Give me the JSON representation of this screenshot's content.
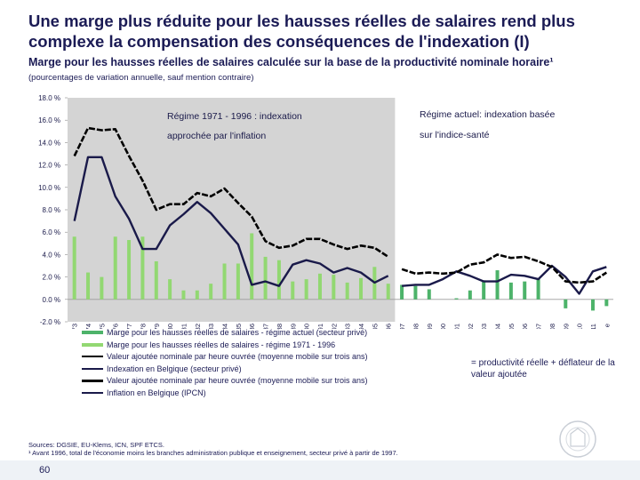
{
  "header": {
    "title": "Une marge plus réduite pour les hausses réelles de salaires rend plus complexe la compensation des conséquences de l'indexation (I)",
    "subtitle": "Marge pour les hausses réelles de salaires calculée sur la base de la productivité nominale horaire¹",
    "units": "(pourcentages de variation annuelle, sauf mention contraire)"
  },
  "chart_data": {
    "type": "bar",
    "ylim": [
      -2,
      18
    ],
    "yticks": [
      "18.0 %",
      "16.0 %",
      "14.0 %",
      "12.0 %",
      "10.0 %",
      "8.0 %",
      "6.0 %",
      "4.0 %",
      "2.0 %",
      "0.0 %",
      "-2.0 %"
    ],
    "categories": [
      "1973",
      "1974",
      "1975",
      "1976",
      "1977",
      "1978",
      "1979",
      "1980",
      "1981",
      "1982",
      "1983",
      "1984",
      "1985",
      "1986",
      "1987",
      "1988",
      "1989",
      "1990",
      "1991",
      "1992",
      "1993",
      "1994",
      "1995",
      "1996",
      "1997",
      "1998",
      "1999",
      "2000",
      "2001",
      "2002",
      "2003",
      "2004",
      "2005",
      "2006",
      "2007",
      "2008",
      "2009",
      "2010",
      "2011",
      "2012 e"
    ],
    "regime_annotations": {
      "old_line1": "Régime 1971 - 1996 : indexation",
      "old_line2": "approchée par l'inflation",
      "new_line1": "Régime actuel: indexation basée",
      "new_line2": "sur l'indice-santé"
    },
    "shaded_region": {
      "from": "1973",
      "to": "1996",
      "color": "#d4d4d4"
    },
    "series": [
      {
        "name": "Marge pour les hausses réelles de salaires - régime actuel (secteur privé)",
        "kind": "bar",
        "color": "#4db36a",
        "values": [
          null,
          null,
          null,
          null,
          null,
          null,
          null,
          null,
          null,
          null,
          null,
          null,
          null,
          null,
          null,
          null,
          null,
          null,
          null,
          null,
          null,
          null,
          null,
          null,
          1.3,
          1.2,
          0.9,
          null,
          0.1,
          0.8,
          1.7,
          2.6,
          1.5,
          1.6,
          1.8,
          0.0,
          -0.8,
          0.0,
          -1.0,
          -0.6
        ]
      },
      {
        "name": "Marge pour les hausses réelles de salaires - régime 1971 - 1996",
        "kind": "bar",
        "color": "#92d872",
        "values": [
          5.6,
          2.4,
          2.0,
          5.6,
          5.3,
          5.6,
          3.4,
          1.8,
          0.8,
          0.8,
          1.4,
          3.2,
          3.2,
          5.9,
          3.8,
          3.5,
          1.6,
          1.8,
          2.3,
          2.2,
          1.5,
          1.9,
          2.9,
          1.4,
          null,
          null,
          null,
          null,
          null,
          null,
          null,
          null,
          null,
          null,
          null,
          null,
          null,
          null,
          null,
          null
        ]
      },
      {
        "name": "Valeur ajoutée nominale par heure ouvrée (moyenne mobile sur trois ans)",
        "kind": "line",
        "subperiod": "1971-1996",
        "color": "#000000",
        "values": [
          12.8,
          15.3,
          15.1,
          15.2,
          12.8,
          10.6,
          8.0,
          8.5,
          8.5,
          9.5,
          9.2,
          9.9,
          8.6,
          7.4,
          5.2,
          4.6,
          4.8,
          5.4,
          5.4,
          4.9,
          4.5,
          4.8,
          4.6,
          3.8,
          null,
          null,
          null,
          null,
          null,
          null,
          null,
          null,
          null,
          null,
          null,
          null,
          null,
          null,
          null,
          null
        ]
      },
      {
        "name": "Indexation en Belgique (secteur privé)",
        "kind": "line",
        "subperiod": "current",
        "color": "#1a1a4a",
        "values": [
          null,
          null,
          null,
          null,
          null,
          null,
          null,
          null,
          null,
          null,
          null,
          null,
          null,
          null,
          null,
          null,
          null,
          null,
          null,
          null,
          null,
          null,
          null,
          null,
          1.2,
          1.3,
          1.3,
          1.8,
          2.5,
          2.1,
          1.6,
          1.6,
          2.2,
          2.1,
          1.8,
          3.0,
          2.0,
          0.5,
          2.5,
          2.9
        ]
      },
      {
        "name": "Valeur ajoutée nominale par heure ouvrée (moyenne mobile sur trois ans)",
        "kind": "line",
        "subperiod": "current",
        "color": "#000000",
        "values": [
          null,
          null,
          null,
          null,
          null,
          null,
          null,
          null,
          null,
          null,
          null,
          null,
          null,
          null,
          null,
          null,
          null,
          null,
          null,
          null,
          null,
          null,
          null,
          null,
          2.7,
          2.3,
          2.4,
          2.3,
          2.4,
          3.1,
          3.3,
          4.0,
          3.7,
          3.8,
          3.4,
          2.9,
          1.6,
          1.5,
          1.6,
          2.4
        ]
      },
      {
        "name": "Inflation en Belgique (IPCN)",
        "kind": "line",
        "subperiod": "1971-1996",
        "color": "#1a1a4a",
        "values": [
          7.0,
          12.7,
          12.7,
          9.2,
          7.2,
          4.5,
          4.5,
          6.6,
          7.6,
          8.7,
          7.7,
          6.3,
          4.9,
          1.3,
          1.6,
          1.2,
          3.1,
          3.5,
          3.2,
          2.4,
          2.8,
          2.4,
          1.5,
          2.1,
          null,
          null,
          null,
          null,
          null,
          null,
          null,
          null,
          null,
          null,
          null,
          null,
          null,
          null,
          null,
          null
        ]
      }
    ]
  },
  "legend": {
    "items": [
      {
        "label": "Marge pour les hausses réelles de salaires - régime actuel (secteur privé)",
        "color": "#4db36a",
        "kind": "bar"
      },
      {
        "label": "Marge pour les hausses réelles de salaires - régime 1971 - 1996",
        "color": "#92d872",
        "kind": "bar"
      },
      {
        "label": "Valeur ajoutée nominale par heure ouvrée (moyenne mobile sur trois ans)",
        "color": "#000000",
        "kind": "line"
      },
      {
        "label": "Indexation en Belgique (secteur privé)",
        "color": "#1a1a4a",
        "kind": "line"
      },
      {
        "label": "Valeur ajoutée  nominale par heure ouvrée (moyenne mobile sur trois ans)",
        "color": "#000000",
        "kind": "line"
      },
      {
        "label": "Inflation en Belgique (IPCN)",
        "color": "#1a1a4a",
        "kind": "line"
      }
    ]
  },
  "note": "= productivité réelle + déflateur de la valeur ajoutée",
  "sources": {
    "line1": "Sources: DGSIE, EU-Klems, ICN, SPF ETCS.",
    "line2": "¹ Avant 1996, total de l'économie moins les branches administration publique et enseignement, secteur privé à partir de 1997."
  },
  "page_number": "60"
}
